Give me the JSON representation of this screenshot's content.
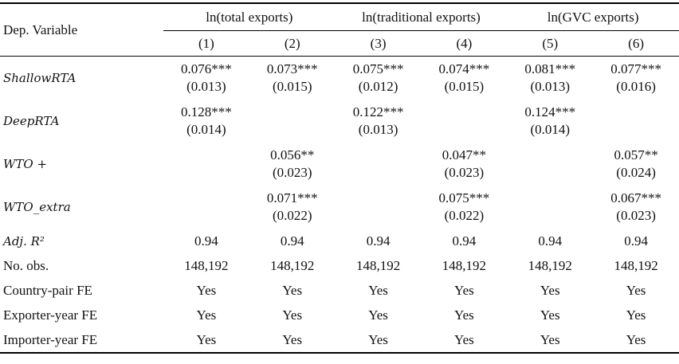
{
  "header": {
    "dep_variable": "Dep. Variable",
    "groups": [
      "ln(total exports)",
      "ln(traditional exports)",
      "ln(GVC exports)"
    ],
    "columns": [
      "(1)",
      "(2)",
      "(3)",
      "(4)",
      "(5)",
      "(6)"
    ]
  },
  "rows": [
    {
      "label": "ShallowRTA",
      "coef": [
        "0.076***",
        "0.073***",
        "0.075***",
        "0.074***",
        "0.081***",
        "0.077***"
      ],
      "se": [
        "(0.013)",
        "(0.015)",
        "(0.012)",
        "(0.015)",
        "(0.013)",
        "(0.016)"
      ]
    },
    {
      "label": "DeepRTA",
      "coef": [
        "0.128***",
        "",
        "0.122***",
        "",
        "0.124***",
        ""
      ],
      "se": [
        "(0.014)",
        "",
        "(0.013)",
        "",
        "(0.014)",
        ""
      ]
    },
    {
      "label": "WTO +",
      "coef": [
        "",
        "0.056**",
        "",
        "0.047**",
        "",
        "0.057**"
      ],
      "se": [
        "",
        "(0.023)",
        "",
        "(0.023)",
        "",
        "(0.024)"
      ]
    },
    {
      "label": "WTO_extra",
      "coef": [
        "",
        "0.071***",
        "",
        "0.075***",
        "",
        "0.067***"
      ],
      "se": [
        "",
        "(0.022)",
        "",
        "(0.022)",
        "",
        "(0.023)"
      ]
    }
  ],
  "stats": [
    {
      "label": "Adj. R²",
      "values": [
        "0.94",
        "0.94",
        "0.94",
        "0.94",
        "0.94",
        "0.94"
      ]
    },
    {
      "label": "No. obs.",
      "values": [
        "148,192",
        "148,192",
        "148,192",
        "148,192",
        "148,192",
        "148,192"
      ]
    },
    {
      "label": "Country-pair FE",
      "values": [
        "Yes",
        "Yes",
        "Yes",
        "Yes",
        "Yes",
        "Yes"
      ]
    },
    {
      "label": "Exporter-year FE",
      "values": [
        "Yes",
        "Yes",
        "Yes",
        "Yes",
        "Yes",
        "Yes"
      ]
    },
    {
      "label": "Importer-year FE",
      "values": [
        "Yes",
        "Yes",
        "Yes",
        "Yes",
        "Yes",
        "Yes"
      ]
    }
  ]
}
